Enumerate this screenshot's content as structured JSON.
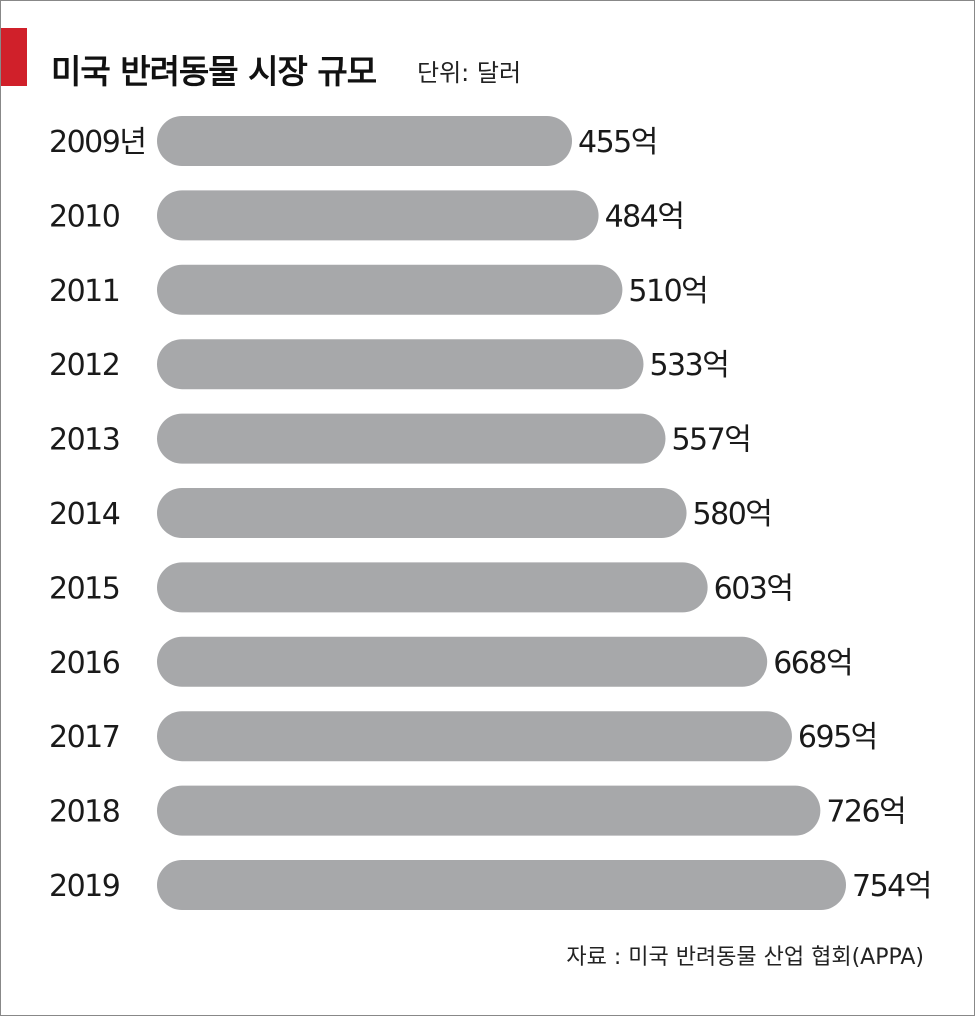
{
  "chart_data": {
    "type": "bar",
    "orientation": "horizontal",
    "title": "미국 반려동물 시장 규모",
    "unit": "단위: 달러",
    "source": "자료 : 미국 반려동물 산업 협회(APPA)",
    "categories": [
      "2009년",
      "2010",
      "2011",
      "2012",
      "2013",
      "2014",
      "2015",
      "2016",
      "2017",
      "2018",
      "2019"
    ],
    "values": [
      455,
      484,
      510,
      533,
      557,
      580,
      603,
      668,
      695,
      726,
      754
    ],
    "value_labels": [
      "455억",
      "484억",
      "510억",
      "533억",
      "557억",
      "580억",
      "603억",
      "668억",
      "695억",
      "726억",
      "754억"
    ],
    "grid": false,
    "legend": "none"
  },
  "colors": {
    "bar": "#a7a8aa",
    "accent": "#d0202a",
    "text": "#1a1a1a"
  }
}
